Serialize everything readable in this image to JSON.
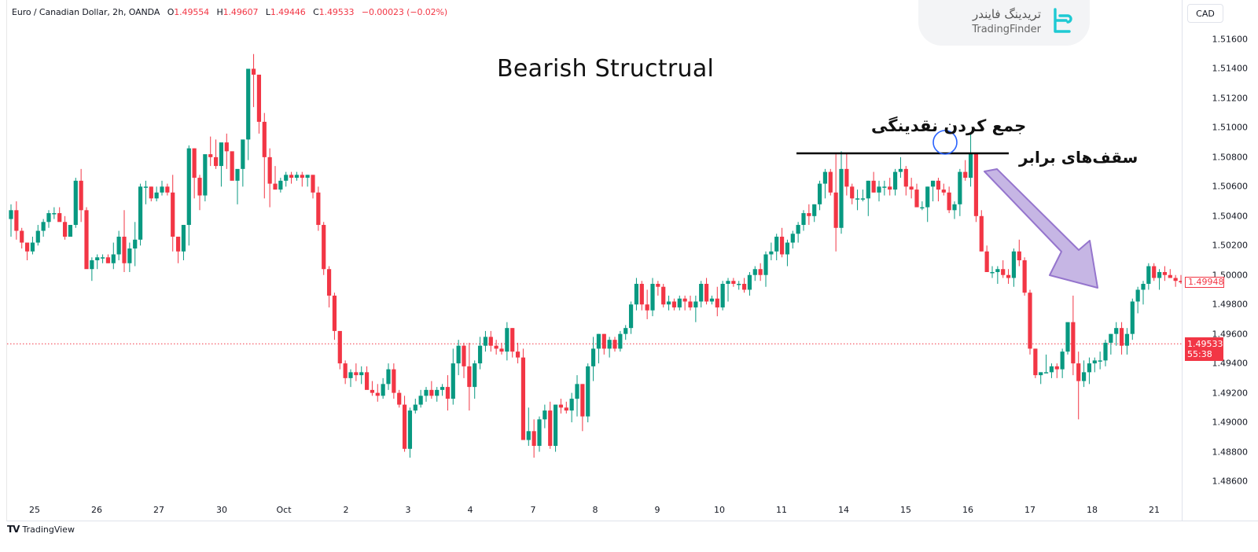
{
  "legend": {
    "symbol": "Euro / Canadian Dollar, 2h, OANDA",
    "open_label": "O",
    "open": "1.49554",
    "high_label": "H",
    "high": "1.49607",
    "low_label": "L",
    "low": "1.49446",
    "close_label": "C",
    "close": "1.49533",
    "change": "−0.00023 (−0.02%)"
  },
  "currency_button": "CAD",
  "watermark": {
    "persian": "تریدینگ فایندر",
    "english": "TradingFinder"
  },
  "annotations": {
    "title": "Bearish Structrual",
    "liquidity_grab": "جمع کردن نقدینگی",
    "equal_highs": "سقف‌های برابر"
  },
  "price_axis": {
    "ticks": [
      "1.51600",
      "1.51400",
      "1.51200",
      "1.51000",
      "1.50800",
      "1.50600",
      "1.50400",
      "1.50200",
      "1.50000",
      "1.49800",
      "1.49600",
      "1.49400",
      "1.49200",
      "1.49000",
      "1.48800",
      "1.48600"
    ],
    "current_price": "1.49533",
    "countdown": "55:38",
    "last_price": "1.49948"
  },
  "time_axis": {
    "labels": [
      "25",
      "26",
      "27",
      "30",
      "Oct",
      "2",
      "3",
      "4",
      "7",
      "8",
      "9",
      "10",
      "11",
      "14",
      "15",
      "16",
      "17",
      "18",
      "21"
    ]
  },
  "footer": {
    "brand": "TradingView"
  },
  "colors": {
    "up": "#089981",
    "down": "#f23645",
    "arrow": "#b39ddb",
    "circle": "#2962ff",
    "line": "#000000"
  },
  "chart_data": {
    "type": "candlestick",
    "title": "Bearish Structrual",
    "symbol": "EURCAD",
    "interval": "2h",
    "ylim": [
      1.485,
      1.517
    ],
    "y_ticks": [
      1.516,
      1.514,
      1.512,
      1.51,
      1.508,
      1.506,
      1.504,
      1.502,
      1.5,
      1.498,
      1.496,
      1.494,
      1.492,
      1.49,
      1.488,
      1.486
    ],
    "x_labels": [
      "25",
      "26",
      "27",
      "30",
      "Oct",
      "2",
      "3",
      "4",
      "7",
      "8",
      "9",
      "10",
      "11",
      "14",
      "15",
      "16",
      "17",
      "18",
      "21"
    ],
    "horizontal_line": 1.5083,
    "current_price": 1.49533,
    "candles_ohlc": [
      [
        1.5038,
        1.5048,
        1.5026,
        1.5044
      ],
      [
        1.5044,
        1.505,
        1.5024,
        1.503
      ],
      [
        1.503,
        1.5032,
        1.5018,
        1.5022
      ],
      [
        1.5022,
        1.5022,
        1.501,
        1.5016
      ],
      [
        1.5016,
        1.5026,
        1.5014,
        1.5022
      ],
      [
        1.5022,
        1.5034,
        1.502,
        1.503
      ],
      [
        1.503,
        1.5038,
        1.5026,
        1.5036
      ],
      [
        1.5036,
        1.5044,
        1.5032,
        1.5042
      ],
      [
        1.5042,
        1.5046,
        1.5038,
        1.5042
      ],
      [
        1.5042,
        1.5046,
        1.504,
        1.5036
      ],
      [
        1.5036,
        1.504,
        1.5024,
        1.5026
      ],
      [
        1.5026,
        1.5034,
        1.5026,
        1.5034
      ],
      [
        1.5034,
        1.5066,
        1.5032,
        1.5064
      ],
      [
        1.5064,
        1.5072,
        1.5036,
        1.5044
      ],
      [
        1.5044,
        1.5046,
        1.5006,
        1.5004
      ],
      [
        1.5004,
        1.5012,
        1.4996,
        1.501
      ],
      [
        1.501,
        1.5014,
        1.5004,
        1.5012
      ],
      [
        1.5012,
        1.5014,
        1.5008,
        1.5012
      ],
      [
        1.5012,
        1.5014,
        1.5008,
        1.5008
      ],
      [
        1.5008,
        1.5022,
        1.5004,
        1.5014
      ],
      [
        1.5014,
        1.503,
        1.501,
        1.5026
      ],
      [
        1.5026,
        1.5044,
        1.5002,
        1.5008
      ],
      [
        1.5008,
        1.5022,
        1.5002,
        1.5018
      ],
      [
        1.5018,
        1.5036,
        1.5006,
        1.5024
      ],
      [
        1.5024,
        1.5062,
        1.502,
        1.506
      ],
      [
        1.506,
        1.5064,
        1.5048,
        1.506
      ],
      [
        1.506,
        1.506,
        1.505,
        1.5052
      ],
      [
        1.5052,
        1.506,
        1.505,
        1.5056
      ],
      [
        1.5056,
        1.5064,
        1.5054,
        1.506
      ],
      [
        1.506,
        1.5062,
        1.5054,
        1.5056
      ],
      [
        1.5056,
        1.5068,
        1.5016,
        1.5026
      ],
      [
        1.5026,
        1.5026,
        1.5008,
        1.5016
      ],
      [
        1.5016,
        1.5034,
        1.501,
        1.5034
      ],
      [
        1.5034,
        1.5088,
        1.502,
        1.5086
      ],
      [
        1.5086,
        1.5086,
        1.5052,
        1.5066
      ],
      [
        1.5066,
        1.5068,
        1.5044,
        1.5054
      ],
      [
        1.5054,
        1.508,
        1.505,
        1.5082
      ],
      [
        1.5082,
        1.5094,
        1.5074,
        1.508
      ],
      [
        1.508,
        1.5092,
        1.5072,
        1.5074
      ],
      [
        1.5074,
        1.5086,
        1.506,
        1.509
      ],
      [
        1.509,
        1.5096,
        1.5072,
        1.5084
      ],
      [
        1.5084,
        1.5082,
        1.5068,
        1.5064
      ],
      [
        1.5064,
        1.507,
        1.5048,
        1.5072
      ],
      [
        1.5072,
        1.5084,
        1.506,
        1.5092
      ],
      [
        1.5092,
        1.5114,
        1.5078,
        1.514
      ],
      [
        1.514,
        1.515,
        1.5114,
        1.5136
      ],
      [
        1.5136,
        1.5134,
        1.5096,
        1.5104
      ],
      [
        1.5104,
        1.511,
        1.5052,
        1.508
      ],
      [
        1.508,
        1.5086,
        1.5046,
        1.5062
      ],
      [
        1.5062,
        1.5074,
        1.5058,
        1.5058
      ],
      [
        1.5058,
        1.5066,
        1.5056,
        1.5064
      ],
      [
        1.5064,
        1.507,
        1.506,
        1.5068
      ],
      [
        1.5068,
        1.507,
        1.5062,
        1.5066
      ],
      [
        1.5066,
        1.507,
        1.5064,
        1.5068
      ],
      [
        1.5068,
        1.507,
        1.506,
        1.5066
      ],
      [
        1.5066,
        1.5068,
        1.506,
        1.5068
      ],
      [
        1.5068,
        1.5068,
        1.5052,
        1.5056
      ],
      [
        1.5056,
        1.506,
        1.503,
        1.5034
      ],
      [
        1.5034,
        1.5036,
        1.5,
        1.5004
      ],
      [
        1.5004,
        1.5006,
        1.4978,
        1.4986
      ],
      [
        1.4986,
        1.4988,
        1.4956,
        1.4962
      ],
      [
        1.4962,
        1.496,
        1.4936,
        1.494
      ],
      [
        1.494,
        1.4942,
        1.4926,
        1.493
      ],
      [
        1.493,
        1.4936,
        1.4924,
        1.4934
      ],
      [
        1.4934,
        1.494,
        1.4928,
        1.4932
      ],
      [
        1.4932,
        1.4938,
        1.4926,
        1.4934
      ],
      [
        1.4934,
        1.4938,
        1.4924,
        1.4922
      ],
      [
        1.4922,
        1.4928,
        1.4918,
        1.492
      ],
      [
        1.492,
        1.4926,
        1.4914,
        1.4918
      ],
      [
        1.4918,
        1.493,
        1.4916,
        1.4926
      ],
      [
        1.4926,
        1.494,
        1.4922,
        1.4936
      ],
      [
        1.4936,
        1.494,
        1.4916,
        1.492
      ],
      [
        1.492,
        1.4922,
        1.491,
        1.4912
      ],
      [
        1.4912,
        1.4918,
        1.488,
        1.4882
      ],
      [
        1.4882,
        1.491,
        1.4876,
        1.4908
      ],
      [
        1.4908,
        1.4916,
        1.4906,
        1.4912
      ],
      [
        1.4912,
        1.4922,
        1.491,
        1.4918
      ],
      [
        1.4918,
        1.4924,
        1.4914,
        1.4922
      ],
      [
        1.4922,
        1.4928,
        1.4916,
        1.4918
      ],
      [
        1.4918,
        1.4924,
        1.4914,
        1.4922
      ],
      [
        1.4922,
        1.4926,
        1.4918,
        1.4924
      ],
      [
        1.4924,
        1.4932,
        1.4908,
        1.4916
      ],
      [
        1.4916,
        1.495,
        1.4912,
        1.494
      ],
      [
        1.494,
        1.4956,
        1.4932,
        1.4952
      ],
      [
        1.4952,
        1.4954,
        1.493,
        1.4938
      ],
      [
        1.4938,
        1.4954,
        1.4908,
        1.4924
      ],
      [
        1.4924,
        1.4942,
        1.4916,
        1.494
      ],
      [
        1.494,
        1.4958,
        1.4936,
        1.4952
      ],
      [
        1.4952,
        1.4962,
        1.4948,
        1.4958
      ],
      [
        1.4958,
        1.4962,
        1.4948,
        1.4952
      ],
      [
        1.4952,
        1.4956,
        1.4946,
        1.495
      ],
      [
        1.495,
        1.4954,
        1.4946,
        1.4948
      ],
      [
        1.4948,
        1.4968,
        1.4942,
        1.4964
      ],
      [
        1.4964,
        1.4964,
        1.4944,
        1.4948
      ],
      [
        1.4948,
        1.4954,
        1.494,
        1.4944
      ],
      [
        1.4944,
        1.495,
        1.4892,
        1.4888
      ],
      [
        1.4888,
        1.491,
        1.4884,
        1.4894
      ],
      [
        1.4894,
        1.4902,
        1.4876,
        1.4884
      ],
      [
        1.4884,
        1.4904,
        1.488,
        1.4902
      ],
      [
        1.4902,
        1.4912,
        1.4896,
        1.4908
      ],
      [
        1.4908,
        1.4914,
        1.4882,
        1.4884
      ],
      [
        1.4884,
        1.4912,
        1.488,
        1.4912
      ],
      [
        1.4912,
        1.4916,
        1.4906,
        1.491
      ],
      [
        1.491,
        1.4914,
        1.4906,
        1.4908
      ],
      [
        1.4908,
        1.492,
        1.49,
        1.4916
      ],
      [
        1.4916,
        1.4932,
        1.4904,
        1.4926
      ],
      [
        1.4926,
        1.4926,
        1.4894,
        1.4904
      ],
      [
        1.4904,
        1.494,
        1.49,
        1.4938
      ],
      [
        1.4938,
        1.4958,
        1.4928,
        1.495
      ],
      [
        1.495,
        1.496,
        1.494,
        1.496
      ],
      [
        1.496,
        1.496,
        1.4946,
        1.495
      ],
      [
        1.495,
        1.4958,
        1.4944,
        1.4956
      ],
      [
        1.4956,
        1.4958,
        1.4948,
        1.495
      ],
      [
        1.495,
        1.4962,
        1.4948,
        1.496
      ],
      [
        1.496,
        1.4966,
        1.4956,
        1.4964
      ],
      [
        1.4964,
        1.4982,
        1.496,
        1.498
      ],
      [
        1.498,
        1.4998,
        1.4976,
        1.4994
      ],
      [
        1.4994,
        1.4996,
        1.4976,
        1.498
      ],
      [
        1.498,
        1.499,
        1.497,
        1.4976
      ],
      [
        1.4976,
        1.4998,
        1.4972,
        1.4994
      ],
      [
        1.4994,
        1.4996,
        1.4986,
        1.4992
      ],
      [
        1.4992,
        1.4994,
        1.4978,
        1.498
      ],
      [
        1.498,
        1.4986,
        1.4976,
        1.4982
      ],
      [
        1.4982,
        1.4984,
        1.4976,
        1.4978
      ],
      [
        1.4978,
        1.4986,
        1.4976,
        1.4984
      ],
      [
        1.4984,
        1.4986,
        1.4976,
        1.4982
      ],
      [
        1.4982,
        1.4986,
        1.4976,
        1.4978
      ],
      [
        1.4978,
        1.4986,
        1.4968,
        1.4982
      ],
      [
        1.4982,
        1.4996,
        1.4978,
        1.4994
      ],
      [
        1.4994,
        1.4998,
        1.498,
        1.4982
      ],
      [
        1.4982,
        1.4986,
        1.498,
        1.4984
      ],
      [
        1.4984,
        1.4992,
        1.4972,
        1.4978
      ],
      [
        1.4978,
        1.4996,
        1.4976,
        1.4994
      ],
      [
        1.4994,
        1.4998,
        1.4982,
        1.4996
      ],
      [
        1.4996,
        1.4998,
        1.4992,
        1.4994
      ],
      [
        1.4994,
        1.4996,
        1.499,
        1.4994
      ],
      [
        1.4994,
        1.4998,
        1.4988,
        1.499
      ],
      [
        1.499,
        1.5002,
        1.4986,
        1.5
      ],
      [
        1.5,
        1.5006,
        1.4996,
        1.5004
      ],
      [
        1.5004,
        1.5008,
        1.4996,
        1.5
      ],
      [
        1.5,
        1.5016,
        1.4992,
        1.5014
      ],
      [
        1.5014,
        1.5022,
        1.501,
        1.5016
      ],
      [
        1.5016,
        1.5028,
        1.501,
        1.5026
      ],
      [
        1.5026,
        1.5032,
        1.5012,
        1.5014
      ],
      [
        1.5014,
        1.5024,
        1.5006,
        1.5022
      ],
      [
        1.5022,
        1.503,
        1.5018,
        1.5028
      ],
      [
        1.5028,
        1.5036,
        1.5022,
        1.5034
      ],
      [
        1.5034,
        1.5044,
        1.503,
        1.5042
      ],
      [
        1.5042,
        1.5048,
        1.5034,
        1.504
      ],
      [
        1.504,
        1.5048,
        1.5036,
        1.5048
      ],
      [
        1.5048,
        1.5064,
        1.5044,
        1.5062
      ],
      [
        1.5062,
        1.5072,
        1.5052,
        1.507
      ],
      [
        1.507,
        1.5072,
        1.5054,
        1.5056
      ],
      [
        1.5056,
        1.5082,
        1.5016,
        1.5032
      ],
      [
        1.5032,
        1.5084,
        1.5028,
        1.5072
      ],
      [
        1.5072,
        1.5083,
        1.5054,
        1.506
      ],
      [
        1.506,
        1.5062,
        1.5048,
        1.5052
      ],
      [
        1.5052,
        1.5058,
        1.5044,
        1.5052
      ],
      [
        1.5052,
        1.5058,
        1.505,
        1.5052
      ],
      [
        1.5052,
        1.5064,
        1.504,
        1.5064
      ],
      [
        1.5064,
        1.507,
        1.5056,
        1.5056
      ],
      [
        1.5056,
        1.5064,
        1.505,
        1.506
      ],
      [
        1.506,
        1.5064,
        1.5054,
        1.506
      ],
      [
        1.506,
        1.5066,
        1.5054,
        1.5058
      ],
      [
        1.5058,
        1.5072,
        1.5054,
        1.507
      ],
      [
        1.507,
        1.508,
        1.5066,
        1.5072
      ],
      [
        1.5072,
        1.5074,
        1.5054,
        1.506
      ],
      [
        1.506,
        1.5066,
        1.5052,
        1.5058
      ],
      [
        1.5058,
        1.5062,
        1.5046,
        1.5046
      ],
      [
        1.5046,
        1.505,
        1.5044,
        1.5046
      ],
      [
        1.5046,
        1.506,
        1.5036,
        1.506
      ],
      [
        1.506,
        1.5064,
        1.505,
        1.5064
      ],
      [
        1.5064,
        1.5066,
        1.505,
        1.5058
      ],
      [
        1.5058,
        1.5062,
        1.5054,
        1.5056
      ],
      [
        1.5056,
        1.506,
        1.5042,
        1.5044
      ],
      [
        1.5044,
        1.505,
        1.5038,
        1.5048
      ],
      [
        1.5048,
        1.5072,
        1.504,
        1.507
      ],
      [
        1.507,
        1.5078,
        1.5064,
        1.5066
      ],
      [
        1.5066,
        1.5096,
        1.506,
        1.5083
      ],
      [
        1.5083,
        1.5083,
        1.5036,
        1.504
      ],
      [
        1.504,
        1.5044,
        1.5016,
        1.5016
      ],
      [
        1.5016,
        1.502,
        1.5002,
        1.5002
      ],
      [
        1.5002,
        1.5006,
        1.4998,
        1.5002
      ],
      [
        1.5002,
        1.5006,
        1.4994,
        1.5004
      ],
      [
        1.5004,
        1.501,
        1.4998,
        1.5
      ],
      [
        1.5,
        1.5004,
        1.4994,
        1.4998
      ],
      [
        1.4998,
        1.5018,
        1.4992,
        1.5016
      ],
      [
        1.5016,
        1.5024,
        1.5006,
        1.501
      ],
      [
        1.501,
        1.5012,
        1.4986,
        1.4988
      ],
      [
        1.4988,
        1.499,
        1.4946,
        1.495
      ],
      [
        1.495,
        1.495,
        1.493,
        1.4932
      ],
      [
        1.4932,
        1.4934,
        1.4926,
        1.4934
      ],
      [
        1.4934,
        1.4946,
        1.4934,
        1.4934
      ],
      [
        1.4934,
        1.494,
        1.493,
        1.4938
      ],
      [
        1.4938,
        1.494,
        1.493,
        1.4936
      ],
      [
        1.4936,
        1.495,
        1.493,
        1.4948
      ],
      [
        1.4948,
        1.496,
        1.4946,
        1.4968
      ],
      [
        1.4968,
        1.4986,
        1.4932,
        1.494
      ],
      [
        1.494,
        1.4948,
        1.4902,
        1.4928
      ],
      [
        1.4928,
        1.4942,
        1.4924,
        1.4934
      ],
      [
        1.4934,
        1.4944,
        1.4926,
        1.494
      ],
      [
        1.494,
        1.4944,
        1.4934,
        1.4942
      ],
      [
        1.4942,
        1.4948,
        1.4936,
        1.4942
      ],
      [
        1.4942,
        1.4956,
        1.4938,
        1.4954
      ],
      [
        1.4954,
        1.496,
        1.4946,
        1.496
      ],
      [
        1.496,
        1.4968,
        1.4952,
        1.4964
      ],
      [
        1.4964,
        1.4968,
        1.4946,
        1.4952
      ],
      [
        1.4952,
        1.4964,
        1.4946,
        1.496
      ],
      [
        1.496,
        1.4984,
        1.4956,
        1.4982
      ],
      [
        1.4982,
        1.4992,
        1.4974,
        1.499
      ],
      [
        1.499,
        1.4996,
        1.498,
        1.4994
      ],
      [
        1.4994,
        1.5008,
        1.499,
        1.5006
      ],
      [
        1.5006,
        1.5008,
        1.4996,
        1.4998
      ],
      [
        1.4998,
        1.5004,
        1.499,
        1.5002
      ],
      [
        1.5002,
        1.5006,
        1.4996,
        1.5
      ],
      [
        1.5,
        1.5004,
        1.4998,
        1.4998
      ],
      [
        1.4998,
        1.5,
        1.4992,
        1.4996
      ],
      [
        1.4996,
        1.5,
        1.4994,
        1.4995
      ]
    ]
  }
}
